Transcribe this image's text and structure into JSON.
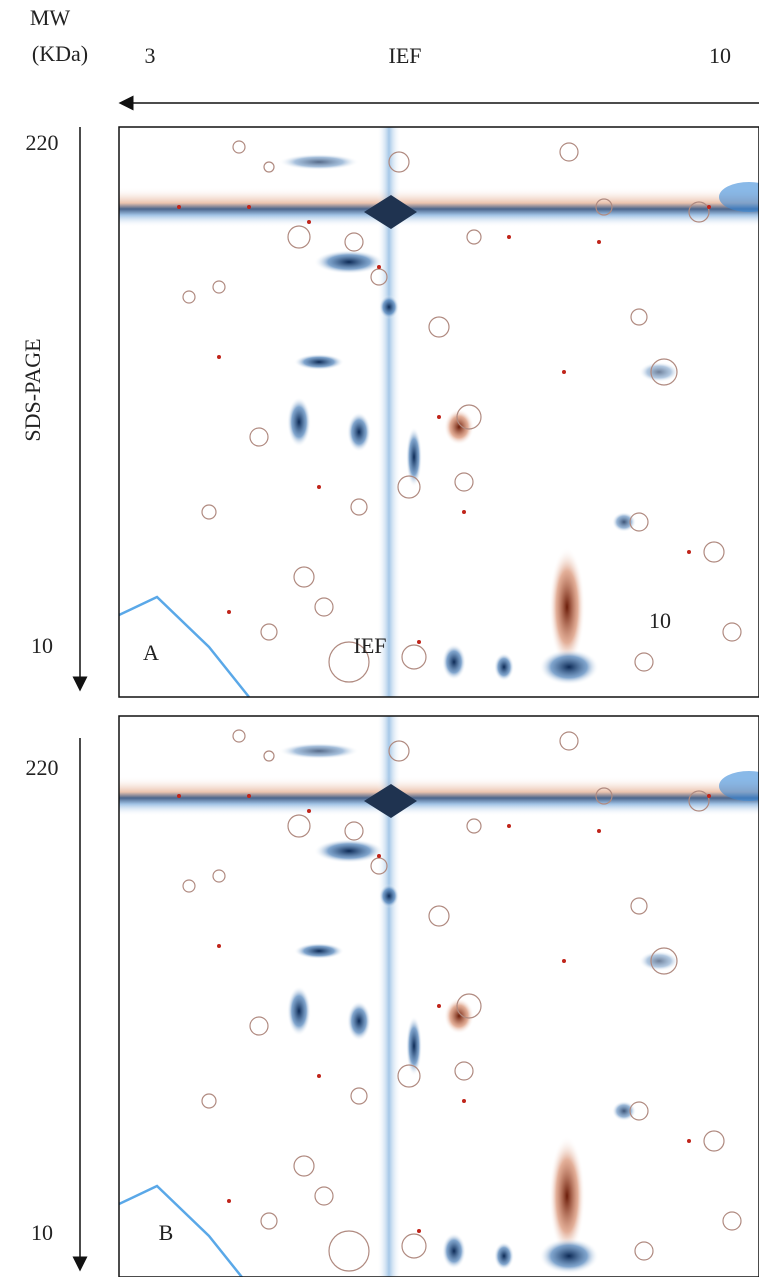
{
  "header": {
    "mw_label": "MW",
    "unit_label": "(KDa)",
    "ief_left": "3",
    "ief_label": "IEF",
    "ief_right": "10"
  },
  "y_axis": {
    "label": "SDS-PAGE"
  },
  "panels": [
    {
      "letter": "A",
      "top_label": "220",
      "bottom_label": "10",
      "overlay_labels": [
        "IEF",
        "10"
      ]
    },
    {
      "letter": "B",
      "top_label": "220",
      "bottom_label": "10"
    }
  ]
}
